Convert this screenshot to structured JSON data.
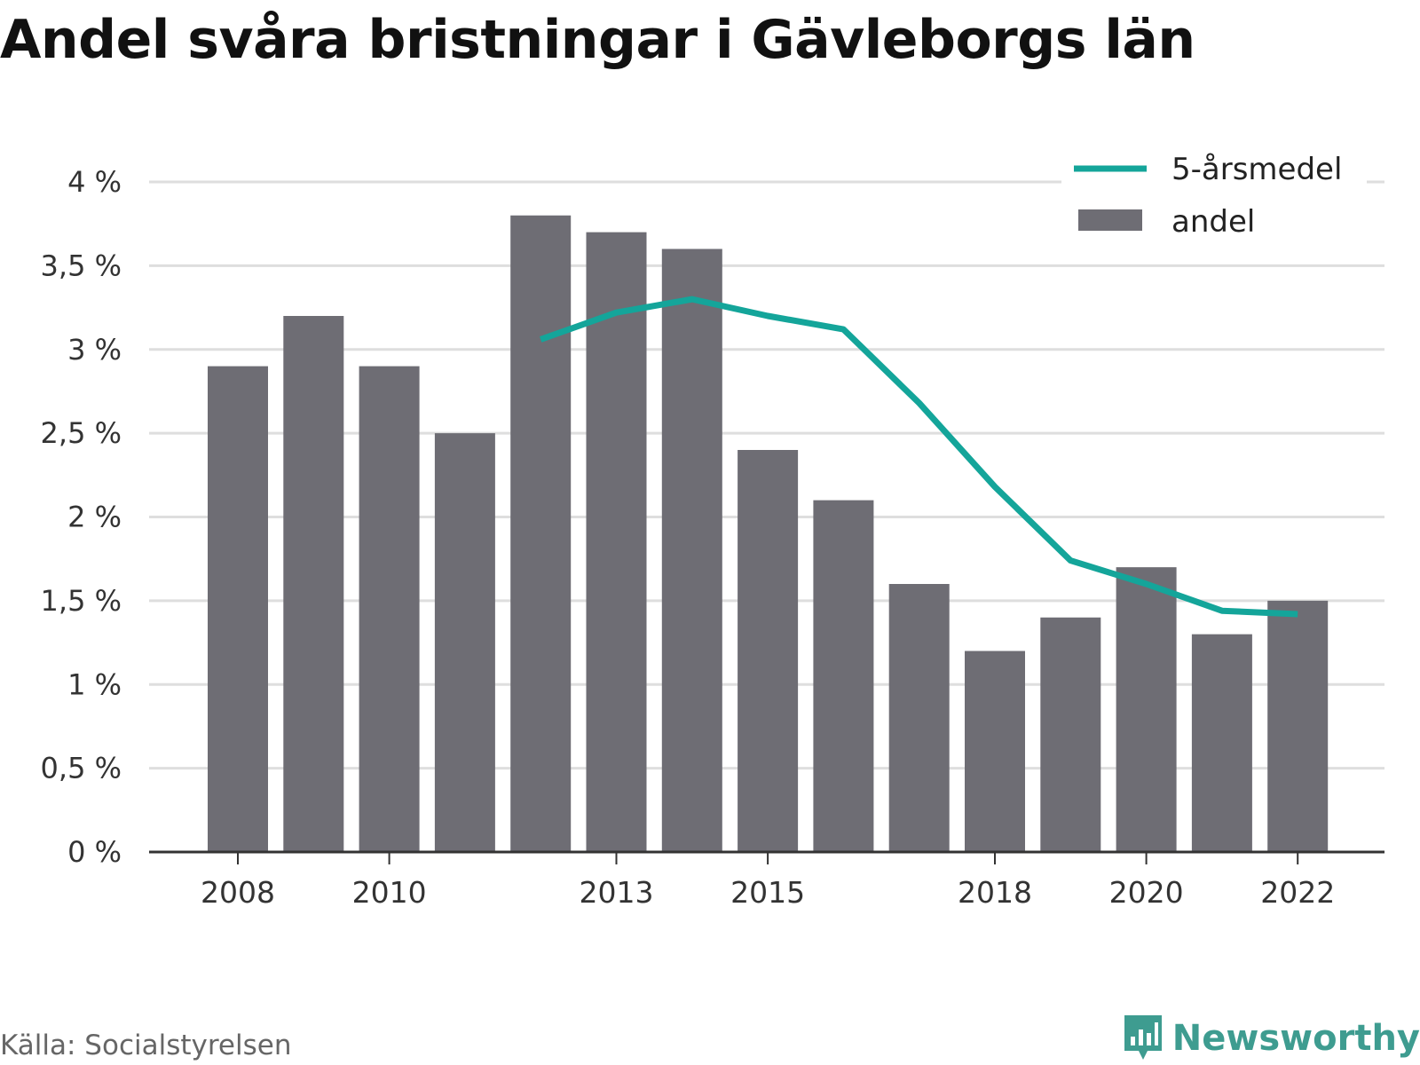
{
  "title": "Andel svåra bristningar i Gävleborgs län",
  "source": "Källa: Socialstyrelsen",
  "brand": "Newsworthy",
  "colors": {
    "bar": "#6e6d74",
    "line": "#14a59a",
    "grid": "#dedede",
    "axis": "#333333",
    "brand": "#3e9c90"
  },
  "icons": {
    "brand_logo": "newsworthy-logo-icon"
  },
  "chart_data": {
    "type": "bar",
    "title": "Andel svåra bristningar i Gävleborgs län",
    "xlabel": "",
    "ylabel": "",
    "ylim": [
      0,
      4
    ],
    "grid": true,
    "legend_position": "top-right",
    "yticks": [
      0,
      0.5,
      1,
      1.5,
      2,
      2.5,
      3,
      3.5,
      4
    ],
    "ytick_labels": [
      "0 %",
      "0,5 %",
      "1 %",
      "1,5 %",
      "2 %",
      "2,5 %",
      "3 %",
      "3,5 %",
      "4 %"
    ],
    "xtick_labels": [
      "2008",
      "2010",
      "2013",
      "2015",
      "2018",
      "2020",
      "2022"
    ],
    "categories": [
      2008,
      2009,
      2010,
      2011,
      2012,
      2013,
      2014,
      2015,
      2016,
      2017,
      2018,
      2019,
      2020,
      2021,
      2022
    ],
    "series": [
      {
        "name": "andel",
        "type": "bar",
        "values": [
          2.9,
          3.2,
          2.9,
          2.5,
          3.8,
          3.7,
          3.6,
          2.4,
          2.1,
          1.6,
          1.2,
          1.4,
          1.7,
          1.3,
          1.5
        ]
      },
      {
        "name": "5-årsmedel",
        "type": "line",
        "values": [
          null,
          null,
          null,
          null,
          3.06,
          3.22,
          3.3,
          3.2,
          3.12,
          2.68,
          2.18,
          1.74,
          1.6,
          1.44,
          1.42
        ]
      }
    ]
  }
}
